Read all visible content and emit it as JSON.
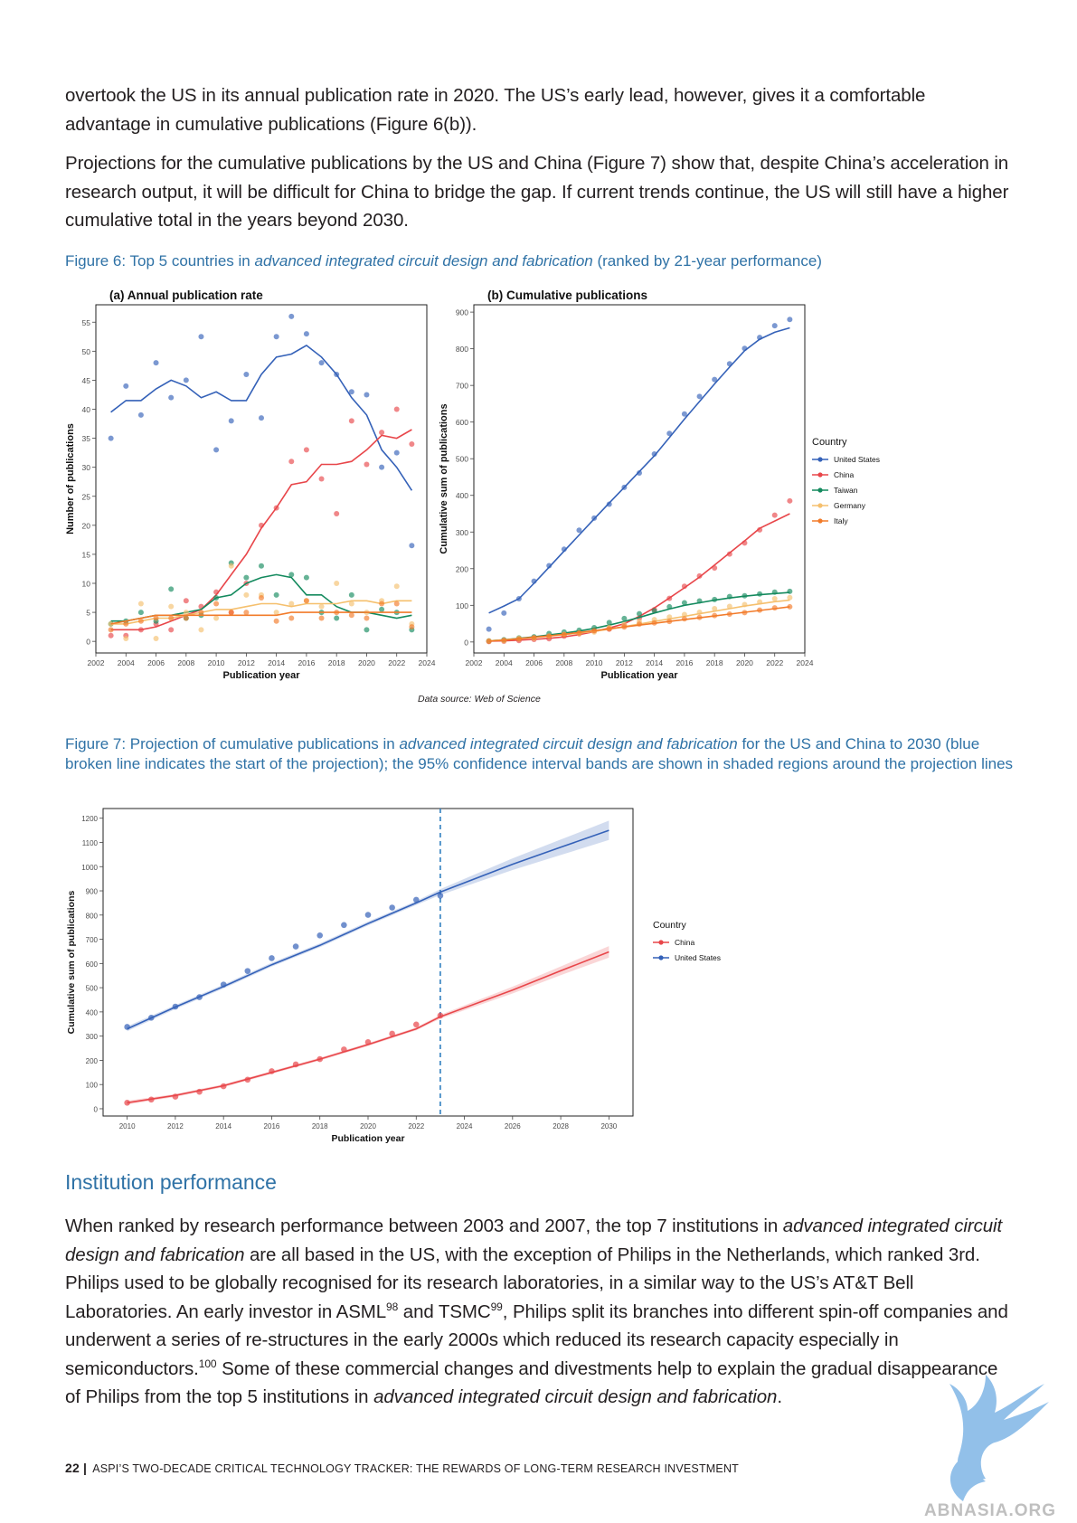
{
  "paragraphs": {
    "p1": "overtook the US in its annual publication rate in 2020. The US’s early lead, however, gives it a comfortable advantage in cumulative publications (Figure 6(b)).",
    "p2": "Projections for the cumulative publications by the US and China (Figure 7) show that, despite China’s acceleration in research output, it will be difficult for China to bridge the gap. If current trends continue, the US will still have a higher cumulative total in the years beyond 2030."
  },
  "fig6_caption": {
    "prefix": "Figure 6:  Top 5 countries in ",
    "italic": "advanced integrated circuit design and fabrication",
    "suffix": " (ranked by 21-year performance)"
  },
  "fig7_caption": {
    "prefix": "Figure 7:  Projection of cumulative publications in ",
    "italic": "advanced integrated circuit design and fabrication",
    "suffix": " for the US and China to 2030 (blue broken line indicates the start of the projection); the 95% confidence interval bands are shown in shaded regions around the projection lines"
  },
  "section": {
    "title": "Institution performance"
  },
  "body": {
    "s1": "When ranked by research performance between 2003 and 2007, the top 7 institutions in ",
    "s1_italic": "advanced integrated circuit design and fabrication",
    "s2": " are all based in the US, with the exception of Philips in the Netherlands, which ranked 3rd. Philips used to be globally recognised for its research laboratories, in a similar way to the US’s AT&T Bell Laboratories. An early investor in ASML",
    "ref98": "98",
    "s3": " and TSMC",
    "ref99": "99",
    "s4": ", Philips split its branches into different spin-off companies and underwent a series of re-structures in the early 2000s which reduced its research capacity especially in semiconductors.",
    "ref100": "100",
    "s5": " Some of these commercial changes and divestments help to explain the gradual disappearance of Philips from the top 5 institutions in ",
    "s5_italic": "advanced integrated circuit design and fabrication",
    "s6": "."
  },
  "footer": {
    "page": "22 |",
    "text": "ASPI’S TWO-DECADE CRITICAL TECHNOLOGY TRACKER: THE REWARDS OF LONG-TERM RESEARCH INVESTMENT"
  },
  "watermark": {
    "text": "ABNASIA.ORG"
  },
  "fig6_source": "Data source: Web of Science",
  "colors": {
    "us": "#3461b8",
    "china": "#e8464a",
    "taiwan": "#148a5e",
    "germany": "#f5c06e",
    "italy": "#f27b2a",
    "us_point": "#5b84cc",
    "china_point": "#ee6f74",
    "vline": "#2f7ec0",
    "caption": "#2f72a6"
  },
  "chart_data": [
    {
      "type": "scatter",
      "title": "(a) Annual publication rate",
      "xlabel": "Publication year",
      "ylabel": "Number of publications",
      "xlim": [
        2002,
        2024
      ],
      "ylim": [
        -2,
        58
      ],
      "xticks": [
        2002,
        2004,
        2006,
        2008,
        2010,
        2012,
        2014,
        2016,
        2018,
        2020,
        2022,
        2024
      ],
      "yticks": [
        0,
        5,
        10,
        15,
        20,
        25,
        30,
        35,
        40,
        45,
        50,
        55
      ],
      "x": [
        2003,
        2004,
        2005,
        2006,
        2007,
        2008,
        2009,
        2010,
        2011,
        2012,
        2013,
        2014,
        2015,
        2016,
        2017,
        2018,
        2019,
        2020,
        2021,
        2022,
        2023
      ],
      "series": [
        {
          "name": "United States",
          "color": "#3461b8",
          "points": [
            35,
            44,
            39,
            48,
            42,
            45,
            52.5,
            33,
            38,
            46,
            38.5,
            52.5,
            56,
            53,
            48,
            46,
            43,
            42.5,
            30,
            32.5,
            16.5
          ],
          "trend": [
            39.5,
            41.5,
            41.5,
            43.5,
            45,
            44,
            42,
            43,
            41.5,
            41.5,
            46,
            49,
            49.5,
            51,
            49,
            46,
            42,
            39,
            33,
            30,
            26
          ]
        },
        {
          "name": "China",
          "color": "#e8464a",
          "points": [
            1,
            1,
            2,
            3,
            2,
            7,
            6,
            8.5,
            5,
            10,
            20,
            23,
            31,
            33,
            28,
            22,
            38,
            30.5,
            36,
            40,
            34
          ],
          "trend": [
            2,
            2,
            2,
            2.5,
            3.5,
            4.5,
            5.5,
            8,
            11.5,
            15,
            19.5,
            23,
            27,
            27.5,
            30.5,
            30.5,
            31,
            33,
            35.5,
            35,
            36.5
          ]
        },
        {
          "name": "Taiwan",
          "color": "#148a5e",
          "points": [
            3,
            3.5,
            5,
            3.5,
            9,
            4,
            4.5,
            7.5,
            13.5,
            11,
            13,
            8,
            11.5,
            11,
            5,
            4,
            8,
            2,
            5.5,
            5,
            2
          ],
          "trend": [
            3.5,
            3.5,
            4,
            4.5,
            4.5,
            5,
            5.5,
            7.5,
            8,
            10,
            11,
            11.5,
            11,
            8,
            8,
            6,
            5,
            5,
            4.5,
            4,
            4.5
          ]
        },
        {
          "name": "Germany",
          "color": "#f5c06e",
          "points": [
            3,
            0.5,
            6.5,
            0.5,
            6,
            5,
            2,
            4,
            13,
            8,
            8,
            5,
            6.5,
            7,
            6,
            10,
            6.5,
            5,
            7,
            9.5,
            3
          ],
          "trend": [
            3,
            3,
            3.5,
            4,
            4,
            4.5,
            5,
            5.5,
            5.5,
            6,
            6.5,
            6.5,
            6,
            6.5,
            6.5,
            6.5,
            7,
            7,
            6.5,
            7,
            7
          ]
        },
        {
          "name": "Italy",
          "color": "#f27b2a",
          "points": [
            2,
            3,
            3.5,
            4,
            4,
            4,
            5,
            6.5,
            5,
            5,
            7.5,
            3.5,
            4,
            7,
            4,
            5,
            4.5,
            4,
            6.5,
            6.5,
            2.5
          ],
          "trend": [
            3,
            3.5,
            4,
            4.5,
            4.5,
            4.5,
            4.5,
            4.5,
            4.5,
            4.5,
            4.5,
            4.5,
            5,
            5,
            5,
            5,
            5,
            5,
            5,
            5,
            5
          ]
        }
      ]
    },
    {
      "type": "scatter",
      "title": "(b) Cumulative publications",
      "xlabel": "Publication year",
      "ylabel": "Cumulative sum of publications",
      "xlim": [
        2002,
        2024
      ],
      "ylim": [
        -30,
        920
      ],
      "xticks": [
        2002,
        2004,
        2006,
        2008,
        2010,
        2012,
        2014,
        2016,
        2018,
        2020,
        2022,
        2024
      ],
      "yticks": [
        0,
        100,
        200,
        300,
        400,
        500,
        600,
        700,
        800,
        900
      ],
      "x": [
        2003,
        2004,
        2005,
        2006,
        2007,
        2008,
        2009,
        2010,
        2011,
        2012,
        2013,
        2014,
        2015,
        2016,
        2017,
        2018,
        2019,
        2020,
        2021,
        2022,
        2023
      ],
      "legend_title": "Country",
      "series": [
        {
          "name": "United States",
          "color": "#3461b8",
          "points": [
            35,
            79,
            118,
            166,
            208,
            253,
            305,
            338,
            376,
            422,
            461,
            513,
            569,
            622,
            670,
            716,
            759,
            801,
            831,
            863,
            880
          ],
          "trend": [
            79,
            98,
            118,
            160,
            204,
            248,
            292,
            336,
            379,
            422,
            465,
            508,
            558,
            608,
            656,
            704,
            750,
            795,
            826,
            845,
            857
          ]
        },
        {
          "name": "China",
          "color": "#e8464a",
          "points": [
            1,
            2,
            4,
            7,
            9,
            16,
            22,
            30,
            35,
            45,
            65,
            88,
            119,
            152,
            180,
            202,
            240,
            270,
            306,
            346,
            385
          ],
          "trend": [
            2,
            3,
            5,
            7,
            10,
            14,
            20,
            28,
            38,
            50,
            70,
            93,
            120,
            148,
            177,
            210,
            243,
            276,
            310,
            330,
            350
          ]
        },
        {
          "name": "Taiwan",
          "color": "#148a5e",
          "points": [
            3,
            6,
            11,
            14,
            23,
            27,
            32,
            39,
            53,
            64,
            77,
            85,
            96,
            107,
            112,
            116,
            124,
            126,
            131,
            136,
            138
          ],
          "trend": [
            3,
            6,
            10,
            14,
            19,
            24,
            30,
            37,
            46,
            56,
            67,
            79,
            90,
            100,
            107,
            114,
            120,
            125,
            129,
            132,
            135
          ]
        },
        {
          "name": "Germany",
          "color": "#f5c06e",
          "points": [
            3,
            3,
            10,
            10,
            16,
            21,
            23,
            27,
            40,
            48,
            56,
            61,
            68,
            75,
            81,
            91,
            97,
            102,
            109,
            118,
            121
          ],
          "trend": [
            3,
            6,
            9,
            12,
            16,
            20,
            24,
            29,
            35,
            42,
            49,
            56,
            63,
            70,
            77,
            84,
            91,
            98,
            104,
            110,
            114
          ]
        },
        {
          "name": "Italy",
          "color": "#f27b2a",
          "points": [
            2,
            5,
            8,
            12,
            16,
            20,
            25,
            31,
            36,
            41,
            49,
            52,
            56,
            63,
            67,
            72,
            76,
            80,
            87,
            93,
            96
          ],
          "trend": [
            2,
            5,
            9,
            13,
            17,
            21,
            26,
            31,
            36,
            41,
            46,
            51,
            56,
            61,
            66,
            71,
            76,
            81,
            86,
            91,
            96
          ]
        }
      ]
    },
    {
      "type": "line",
      "xlabel": "Publication year",
      "ylabel": "Cumulative sum of publications",
      "xlim": [
        2009,
        2031
      ],
      "ylim": [
        -30,
        1240
      ],
      "xticks": [
        2010,
        2012,
        2014,
        2016,
        2018,
        2020,
        2022,
        2024,
        2026,
        2028,
        2030
      ],
      "yticks": [
        0,
        100,
        200,
        300,
        400,
        500,
        600,
        700,
        800,
        900,
        1000,
        1100,
        1200
      ],
      "projection_start": 2023,
      "legend_title": "Country",
      "series": [
        {
          "name": "China",
          "color": "#e8464a",
          "points_x": [
            2010,
            2011,
            2012,
            2013,
            2014,
            2015,
            2016,
            2017,
            2018,
            2019,
            2020,
            2021,
            2022,
            2023
          ],
          "points_y": [
            25,
            38,
            50,
            70,
            93,
            120,
            155,
            183,
            205,
            245,
            275,
            310,
            348,
            385
          ],
          "fit_x": [
            2010,
            2012,
            2014,
            2016,
            2018,
            2020,
            2022,
            2023,
            2026,
            2028,
            2030
          ],
          "fit_y": [
            25,
            55,
            95,
            150,
            205,
            265,
            330,
            380,
            490,
            570,
            648
          ],
          "ci_half": [
            8,
            6,
            6,
            6,
            6,
            6,
            6,
            8,
            14,
            18,
            24
          ]
        },
        {
          "name": "United States",
          "color": "#3461b8",
          "points_x": [
            2010,
            2011,
            2012,
            2013,
            2014,
            2015,
            2016,
            2017,
            2018,
            2019,
            2020,
            2021,
            2022,
            2023
          ],
          "points_y": [
            338,
            376,
            422,
            461,
            513,
            569,
            622,
            670,
            716,
            759,
            801,
            831,
            863,
            880
          ],
          "fit_x": [
            2010,
            2012,
            2014,
            2016,
            2018,
            2020,
            2022,
            2023,
            2026,
            2028,
            2030
          ],
          "fit_y": [
            330,
            420,
            505,
            595,
            675,
            765,
            850,
            895,
            1010,
            1080,
            1150
          ],
          "ci_half": [
            10,
            8,
            8,
            8,
            8,
            8,
            8,
            12,
            24,
            32,
            40
          ]
        }
      ]
    }
  ]
}
